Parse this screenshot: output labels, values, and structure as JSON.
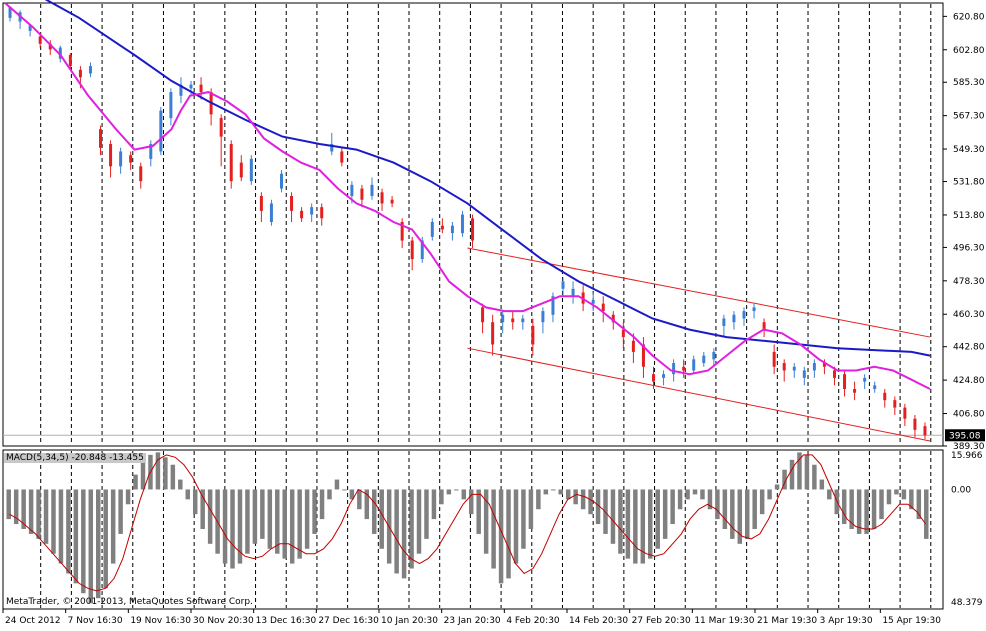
{
  "chart_data": [
    {
      "type": "candlestick",
      "panel": "main",
      "price_axis": {
        "ylim": [
          389.3,
          628.0
        ],
        "ticks": [
          "620.80",
          "602.80",
          "585.30",
          "567.30",
          "549.30",
          "531.80",
          "513.80",
          "496.30",
          "478.30",
          "460.30",
          "442.80",
          "424.80",
          "406.80",
          "389.30"
        ],
        "current_price": "395.08"
      },
      "time_axis": {
        "ticks": [
          "24 Oct 2012",
          "7 Nov 16:30",
          "19 Nov 16:30",
          "30 Nov 20:30",
          "13 Dec 16:30",
          "27 Dec 16:30",
          "10 Jan 20:30",
          "23 Jan 20:30",
          "4 Feb 20:30",
          "14 Feb 20:30",
          "27 Feb 20:30",
          "11 Mar 19:30",
          "21 Mar 19:30",
          "3 Apr 19:30",
          "15 Apr 19:30"
        ]
      },
      "colors": {
        "bull": "#3a7fd5",
        "bear": "#e41f1f",
        "ma_fast": "#e020e0",
        "ma_slow": "#1a1ac8",
        "channel": "#e41f1f",
        "grid": "#000000"
      },
      "ma_fast_curve": [
        [
          0,
          628
        ],
        [
          3,
          615
        ],
        [
          6,
          600
        ],
        [
          9,
          578
        ],
        [
          12,
          560
        ],
        [
          14,
          549
        ],
        [
          16,
          551
        ],
        [
          18,
          560
        ],
        [
          19,
          570
        ],
        [
          20,
          578
        ],
        [
          22,
          580
        ],
        [
          24,
          575
        ],
        [
          26,
          568
        ],
        [
          28,
          555
        ],
        [
          30,
          548
        ],
        [
          32,
          542
        ],
        [
          34,
          538
        ],
        [
          36,
          528
        ],
        [
          38,
          520
        ],
        [
          40,
          516
        ],
        [
          42,
          510
        ],
        [
          44,
          506
        ],
        [
          46,
          493
        ],
        [
          48,
          478
        ],
        [
          50,
          470
        ],
        [
          52,
          464
        ],
        [
          54,
          462
        ],
        [
          56,
          462
        ],
        [
          58,
          466
        ],
        [
          60,
          470
        ],
        [
          62,
          470
        ],
        [
          64,
          464
        ],
        [
          66,
          456
        ],
        [
          68,
          448
        ],
        [
          70,
          438
        ],
        [
          72,
          430
        ],
        [
          74,
          428
        ],
        [
          76,
          430
        ],
        [
          78,
          438
        ],
        [
          80,
          446
        ],
        [
          82,
          452
        ],
        [
          84,
          450
        ],
        [
          86,
          444
        ],
        [
          88,
          436
        ],
        [
          90,
          430
        ],
        [
          92,
          430
        ],
        [
          94,
          432
        ],
        [
          96,
          430
        ],
        [
          98,
          425
        ],
        [
          100,
          420
        ]
      ],
      "ma_slow_curve": [
        [
          0,
          642
        ],
        [
          8,
          620
        ],
        [
          14,
          600
        ],
        [
          18,
          586
        ],
        [
          22,
          575
        ],
        [
          26,
          565
        ],
        [
          30,
          556
        ],
        [
          34,
          552
        ],
        [
          38,
          549
        ],
        [
          42,
          542
        ],
        [
          46,
          532
        ],
        [
          50,
          520
        ],
        [
          54,
          505
        ],
        [
          58,
          490
        ],
        [
          62,
          478
        ],
        [
          66,
          468
        ],
        [
          70,
          458
        ],
        [
          74,
          452
        ],
        [
          78,
          448
        ],
        [
          82,
          446
        ],
        [
          86,
          444
        ],
        [
          90,
          442
        ],
        [
          94,
          441
        ],
        [
          98,
          440
        ],
        [
          100,
          438
        ]
      ],
      "channel_upper": [
        [
          50,
          496
        ],
        [
          100,
          448
        ]
      ],
      "channel_lower": [
        [
          50,
          442
        ],
        [
          100,
          392
        ]
      ],
      "candles": [
        [
          0,
          620,
          626,
          626,
          618
        ],
        [
          1,
          618,
          623,
          624,
          614
        ],
        [
          2,
          613,
          616,
          616,
          610
        ],
        [
          3,
          610,
          606,
          612,
          604
        ],
        [
          4,
          606,
          603,
          608,
          600
        ],
        [
          5,
          598,
          604,
          605,
          596
        ],
        [
          6,
          600,
          594,
          601,
          592
        ],
        [
          7,
          592,
          588,
          594,
          582
        ],
        [
          8,
          590,
          594,
          596,
          588
        ],
        [
          9,
          560,
          550,
          562,
          546
        ],
        [
          10,
          552,
          540,
          554,
          534
        ],
        [
          11,
          540,
          548,
          550,
          536
        ],
        [
          12,
          546,
          542,
          548,
          538
        ],
        [
          13,
          540,
          532,
          542,
          528
        ],
        [
          14,
          544,
          552,
          554,
          540
        ],
        [
          15,
          548,
          570,
          572,
          546
        ],
        [
          16,
          566,
          580,
          582,
          562
        ],
        [
          17,
          578,
          584,
          588,
          574
        ],
        [
          18,
          582,
          584,
          586,
          578
        ],
        [
          19,
          584,
          580,
          588,
          576
        ],
        [
          20,
          580,
          568,
          582,
          562
        ],
        [
          21,
          566,
          556,
          568,
          540
        ],
        [
          22,
          552,
          532,
          554,
          528
        ],
        [
          23,
          542,
          534,
          546,
          532
        ],
        [
          24,
          532,
          544,
          546,
          530
        ],
        [
          25,
          524,
          516,
          526,
          510
        ],
        [
          26,
          510,
          520,
          522,
          508
        ],
        [
          27,
          528,
          536,
          538,
          526
        ],
        [
          28,
          524,
          516,
          526,
          510
        ],
        [
          29,
          516,
          512,
          518,
          510
        ],
        [
          30,
          514,
          518,
          520,
          510
        ],
        [
          31,
          518,
          512,
          520,
          508
        ],
        [
          32,
          548,
          552,
          558,
          546
        ],
        [
          33,
          548,
          542,
          550,
          540
        ],
        [
          34,
          524,
          530,
          532,
          520
        ],
        [
          35,
          528,
          522,
          530,
          518
        ],
        [
          36,
          524,
          530,
          534,
          522
        ],
        [
          37,
          526,
          520,
          528,
          516
        ],
        [
          38,
          522,
          520,
          524,
          518
        ],
        [
          39,
          510,
          500,
          512,
          496
        ],
        [
          40,
          500,
          490,
          502,
          484
        ],
        [
          41,
          490,
          500,
          502,
          488
        ],
        [
          42,
          502,
          510,
          512,
          500
        ],
        [
          43,
          508,
          506,
          512,
          504
        ],
        [
          44,
          504,
          508,
          510,
          500
        ],
        [
          45,
          504,
          514,
          516,
          502
        ],
        [
          46,
          512,
          500,
          514,
          496
        ],
        [
          47,
          464,
          456,
          466,
          450
        ],
        [
          48,
          456,
          444,
          460,
          438
        ],
        [
          49,
          456,
          460,
          462,
          450
        ],
        [
          50,
          458,
          456,
          462,
          452
        ],
        [
          51,
          456,
          458,
          460,
          452
        ],
        [
          52,
          454,
          444,
          458,
          438
        ],
        [
          53,
          456,
          462,
          464,
          450
        ],
        [
          54,
          460,
          470,
          472,
          456
        ],
        [
          55,
          474,
          478,
          480,
          470
        ],
        [
          56,
          470,
          474,
          478,
          466
        ],
        [
          57,
          472,
          466,
          476,
          462
        ],
        [
          58,
          466,
          468,
          472,
          462
        ],
        [
          59,
          466,
          462,
          470,
          456
        ],
        [
          60,
          460,
          456,
          462,
          452
        ],
        [
          61,
          452,
          448,
          456,
          442
        ],
        [
          62,
          446,
          440,
          450,
          434
        ],
        [
          63,
          444,
          432,
          448,
          426
        ],
        [
          64,
          428,
          424,
          432,
          420
        ],
        [
          65,
          426,
          428,
          430,
          422
        ],
        [
          66,
          428,
          434,
          436,
          424
        ],
        [
          67,
          432,
          430,
          436,
          426
        ],
        [
          68,
          430,
          436,
          438,
          428
        ],
        [
          69,
          434,
          438,
          440,
          432
        ],
        [
          70,
          436,
          440,
          442,
          432
        ],
        [
          71,
          454,
          458,
          460,
          448
        ],
        [
          72,
          456,
          460,
          462,
          452
        ],
        [
          73,
          458,
          462,
          464,
          454
        ],
        [
          74,
          462,
          464,
          466,
          458
        ],
        [
          75,
          456,
          452,
          458,
          448
        ],
        [
          76,
          440,
          432,
          444,
          428
        ],
        [
          77,
          434,
          430,
          436,
          424
        ],
        [
          78,
          430,
          432,
          434,
          426
        ],
        [
          79,
          426,
          430,
          432,
          422
        ],
        [
          80,
          430,
          434,
          436,
          426
        ],
        [
          81,
          434,
          432,
          436,
          428
        ],
        [
          82,
          430,
          426,
          432,
          422
        ],
        [
          83,
          428,
          420,
          430,
          416
        ],
        [
          84,
          420,
          418,
          424,
          414
        ],
        [
          85,
          424,
          426,
          428,
          420
        ],
        [
          86,
          420,
          422,
          424,
          418
        ],
        [
          87,
          418,
          414,
          420,
          410
        ],
        [
          88,
          414,
          410,
          416,
          406
        ],
        [
          89,
          410,
          404,
          412,
          400
        ],
        [
          90,
          404,
          398,
          406,
          394
        ],
        [
          91,
          400,
          395,
          402,
          393
        ]
      ]
    },
    {
      "type": "bar",
      "panel": "indicator",
      "title": "MACD(5,34,5) -20.848 -13.455",
      "y_ticks": {
        "top": "15.966",
        "zero": "0.00",
        "bottom": "48.379"
      },
      "ylim": [
        -48.379,
        15.966
      ],
      "colors": {
        "bars": "#808080",
        "signal": "#c00000"
      },
      "histogram": [
        -12,
        -14,
        -16,
        -18,
        -20,
        -22,
        -26,
        -30,
        -34,
        -38,
        -42,
        -46,
        -44,
        -40,
        -30,
        -18,
        -6,
        6,
        12,
        14,
        15,
        13,
        10,
        4,
        -4,
        -10,
        -16,
        -22,
        -26,
        -30,
        -32,
        -30,
        -26,
        -22,
        -20,
        -24,
        -26,
        -28,
        -30,
        -28,
        -24,
        -18,
        -12,
        -4,
        4,
        0,
        -4,
        -8,
        -12,
        -18,
        -24,
        -30,
        -34,
        -36,
        -32,
        -26,
        -20,
        -12,
        -6,
        -2,
        0,
        -4,
        -10,
        -18,
        -26,
        -32,
        -38,
        -36,
        -30,
        -24,
        -16,
        -8,
        -2,
        0,
        -2,
        -4,
        -6,
        -8,
        -10,
        -14,
        -18,
        -22,
        -26,
        -28,
        -30,
        -30,
        -28,
        -24,
        -20,
        -14,
        -8,
        -4,
        -2,
        -4,
        -8,
        -12,
        -16,
        -20,
        -22,
        -20,
        -16,
        -10,
        -4,
        2,
        8,
        12,
        15,
        14,
        10,
        4,
        -4,
        -10,
        -14,
        -16,
        -18,
        -18,
        -16,
        -12,
        -6,
        -2,
        -4,
        -8,
        -12,
        -20
      ],
      "signal": [
        -10,
        -12,
        -15,
        -18,
        -22,
        -26,
        -30,
        -34,
        -38,
        -40,
        -41,
        -40,
        -36,
        -28,
        -16,
        -4,
        6,
        12,
        14,
        13,
        10,
        5,
        -2,
        -8,
        -14,
        -20,
        -24,
        -27,
        -28,
        -27,
        -24,
        -22,
        -22,
        -24,
        -26,
        -26,
        -24,
        -20,
        -14,
        -6,
        0,
        -2,
        -6,
        -12,
        -18,
        -24,
        -28,
        -30,
        -28,
        -24,
        -18,
        -12,
        -6,
        -2,
        -2,
        -6,
        -14,
        -22,
        -30,
        -34,
        -32,
        -26,
        -18,
        -10,
        -4,
        -2,
        -3,
        -5,
        -8,
        -12,
        -16,
        -20,
        -24,
        -26,
        -27,
        -26,
        -22,
        -18,
        -12,
        -8,
        -6,
        -8,
        -12,
        -16,
        -19,
        -20,
        -18,
        -12,
        -4,
        4,
        10,
        14,
        14,
        10,
        2,
        -6,
        -12,
        -15,
        -16,
        -16,
        -14,
        -10,
        -6,
        -6,
        -9,
        -14
      ]
    }
  ],
  "footer": {
    "copyright": "MetaTrader, © 2001-2013, MetaQuotes Software Corp."
  }
}
